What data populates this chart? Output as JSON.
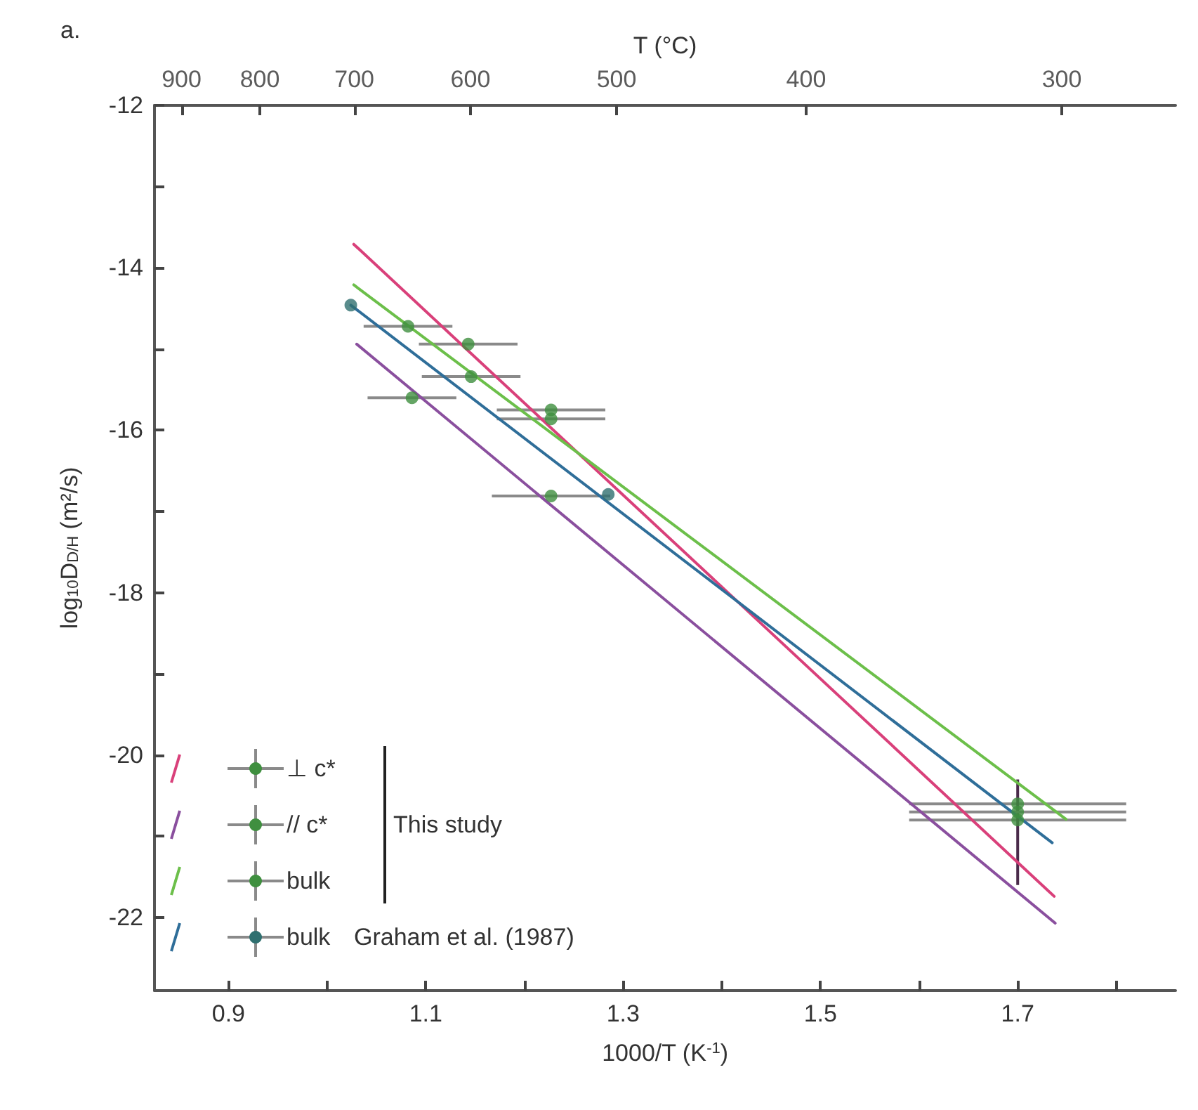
{
  "chart_data": {
    "type": "scatter",
    "title": "a.",
    "xlabel": "1000/T (K$^{-1}$)",
    "ylabel": "log$_{10}$D$_{D/H}$ (m²/s)",
    "x2label": "T (°C)",
    "xlim": [
      0.825,
      1.86
    ],
    "xticks": [
      0.9,
      {
        "value": 1.0,
        "label": null
      },
      1.1,
      {
        "value": 1.2,
        "label": null
      },
      1.3,
      {
        "value": 1.4,
        "label": null
      },
      1.5,
      {
        "value": 1.6,
        "label": null
      },
      1.7,
      {
        "value": 1.8,
        "label": null
      }
    ],
    "ylim": [
      -22.9,
      -12
    ],
    "yticks": [
      -12,
      {
        "value": -13,
        "label": null
      },
      -14,
      {
        "value": -15,
        "label": null
      },
      -16,
      {
        "value": -17,
        "label": null
      },
      -18,
      {
        "value": -19,
        "label": null
      },
      -20,
      {
        "value": -21,
        "label": null
      },
      -22
    ],
    "grid": false,
    "legend": "bottom left",
    "marker": "circle",
    "annotations": [
      "This study",
      "Graham et al. (1987)",
      "900",
      "800",
      "700",
      "600",
      "500",
      "400",
      "300"
    ],
    "series": [
      {
        "name": "⊥ c*",
        "color": "#3f8f3f",
        "x": [
          1.082,
          1.143,
          1.227,
          1.7
        ],
        "values": [
          -14.72,
          -14.94,
          -15.75,
          -20.6
        ],
        "xerrors": [
          0.045,
          0.05,
          0.055,
          0.11
        ]
      },
      {
        "name": "// c*",
        "color": "#3f8f3f",
        "x": [
          1.086,
          1.227,
          1.7
        ],
        "values": [
          -15.6,
          -16.81,
          -20.8
        ],
        "xerrors": [
          0.045,
          0.06,
          0.11
        ],
        "errors": [
          null,
          null,
          [
            -21.6,
            -20.3
          ]
        ]
      },
      {
        "name": "bulk",
        "color": "#3f8f3f",
        "x": [
          1.146,
          1.227,
          1.7
        ],
        "values": [
          -15.34,
          -15.86,
          -20.7
        ],
        "xerrors": [
          0.05,
          0.055,
          0.11
        ]
      },
      {
        "name": "bulk",
        "color": "#2f6f6f",
        "x": [
          1.024,
          1.285
        ],
        "values": [
          -14.46,
          -16.79
        ]
      },
      {
        "type": "line",
        "marker": "none",
        "color": "#d9407a",
        "x": [
          1.027,
          1.737
        ],
        "values": [
          -13.71,
          -21.74
        ]
      },
      {
        "type": "line",
        "marker": "none",
        "color": "#8a4f9e",
        "x": [
          1.03,
          1.738
        ],
        "values": [
          -14.94,
          -22.07
        ]
      },
      {
        "type": "line",
        "marker": "none",
        "color": "#6cbf4a",
        "x": [
          1.027,
          1.749
        ],
        "values": [
          -14.21,
          -20.79
        ]
      },
      {
        "type": "line",
        "marker": "none",
        "color": "#2f6e99",
        "x": [
          1.024,
          1.735
        ],
        "values": [
          -14.46,
          -21.08
        ]
      }
    ]
  }
}
